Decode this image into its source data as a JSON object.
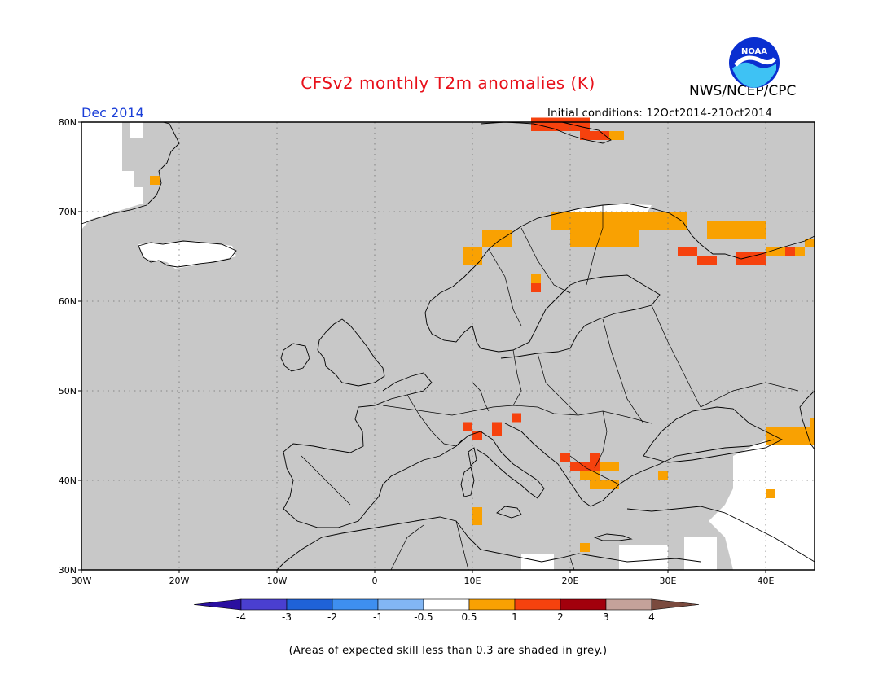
{
  "header": {
    "title": "CFSv2 monthly T2m anomalies (K)",
    "organization": "NWS/NCEP/CPC",
    "logo_text": "NOAA",
    "valid_month": "Dec 2014",
    "initial_conditions": "Initial conditions: 12Oct2014-21Oct2014"
  },
  "map": {
    "region": "Europe",
    "lon_range": [
      -30,
      45
    ],
    "lat_range": [
      30,
      80
    ],
    "lat_labels": [
      "80N",
      "70N",
      "60N",
      "50N",
      "40N",
      "30N"
    ],
    "lon_labels": [
      "30W",
      "20W",
      "10W",
      "0",
      "10E",
      "20E",
      "30E",
      "40E"
    ],
    "colors": {
      "low_skill_grey": "#c8c8c8",
      "ocean_background": "#ffffff",
      "coast": "#000000"
    },
    "anomaly_cells": [
      {
        "lon": 16,
        "lat": 79,
        "w": 6,
        "h": 1.5,
        "class": "1-2"
      },
      {
        "lon": 21,
        "lat": 78,
        "w": 4,
        "h": 1,
        "class": "1-2"
      },
      {
        "lon": 24,
        "lat": 78,
        "w": 1.5,
        "h": 1,
        "class": "0.5-1"
      },
      {
        "lon": -23,
        "lat": 73,
        "w": 1,
        "h": 1,
        "class": "0.5-1"
      },
      {
        "lon": 18,
        "lat": 68,
        "w": 14,
        "h": 2,
        "class": "0.5-1"
      },
      {
        "lon": 20,
        "lat": 66,
        "w": 7,
        "h": 2,
        "class": "0.5-1"
      },
      {
        "lon": 27,
        "lat": 69,
        "w": 4,
        "h": 1,
        "class": "0.5-1"
      },
      {
        "lon": 11,
        "lat": 66,
        "w": 3,
        "h": 2,
        "class": "0.5-1"
      },
      {
        "lon": 9,
        "lat": 64,
        "w": 2,
        "h": 2,
        "class": "0.5-1"
      },
      {
        "lon": 16,
        "lat": 62,
        "w": 1,
        "h": 1,
        "class": "0.5-1"
      },
      {
        "lon": 16,
        "lat": 61,
        "w": 1,
        "h": 1,
        "class": "1-2"
      },
      {
        "lon": 34,
        "lat": 67,
        "w": 6,
        "h": 2,
        "class": "0.5-1"
      },
      {
        "lon": 31,
        "lat": 65,
        "w": 2,
        "h": 1,
        "class": "1-2"
      },
      {
        "lon": 33,
        "lat": 64,
        "w": 2,
        "h": 1,
        "class": "1-2"
      },
      {
        "lon": 37,
        "lat": 64,
        "w": 3,
        "h": 1.5,
        "class": "1-2"
      },
      {
        "lon": 40,
        "lat": 65,
        "w": 4,
        "h": 1,
        "class": "0.5-1"
      },
      {
        "lon": 42,
        "lat": 65,
        "w": 1,
        "h": 1,
        "class": "1-2"
      },
      {
        "lon": 44,
        "lat": 66,
        "w": 1,
        "h": 1,
        "class": "0.5-1"
      },
      {
        "lon": 40,
        "lat": 44,
        "w": 5,
        "h": 2,
        "class": "0.5-1"
      },
      {
        "lon": 44.5,
        "lat": 46,
        "w": 0.5,
        "h": 1,
        "class": "0.5-1"
      },
      {
        "lon": 9,
        "lat": 45.5,
        "w": 1,
        "h": 1,
        "class": "1-2"
      },
      {
        "lon": 10,
        "lat": 44.5,
        "w": 1,
        "h": 1,
        "class": "1-2"
      },
      {
        "lon": 12,
        "lat": 45,
        "w": 1,
        "h": 1.5,
        "class": "1-2"
      },
      {
        "lon": 14,
        "lat": 46.5,
        "w": 1,
        "h": 1,
        "class": "1-2"
      },
      {
        "lon": 19,
        "lat": 42,
        "w": 1,
        "h": 1,
        "class": "1-2"
      },
      {
        "lon": 20,
        "lat": 41,
        "w": 3,
        "h": 1,
        "class": "1-2"
      },
      {
        "lon": 22,
        "lat": 42,
        "w": 1,
        "h": 1,
        "class": "1-2"
      },
      {
        "lon": 21,
        "lat": 40,
        "w": 2,
        "h": 1,
        "class": "0.5-1"
      },
      {
        "lon": 23,
        "lat": 41,
        "w": 2,
        "h": 1,
        "class": "0.5-1"
      },
      {
        "lon": 22,
        "lat": 39,
        "w": 3,
        "h": 1,
        "class": "0.5-1"
      },
      {
        "lon": 29,
        "lat": 40,
        "w": 1,
        "h": 1,
        "class": "0.5-1"
      },
      {
        "lon": 40,
        "lat": 38,
        "w": 1,
        "h": 1,
        "class": "0.5-1"
      },
      {
        "lon": 10,
        "lat": 35,
        "w": 1,
        "h": 2,
        "class": "0.5-1"
      },
      {
        "lon": 21,
        "lat": 32,
        "w": 1,
        "h": 1,
        "class": "0.5-1"
      }
    ]
  },
  "colorbar": {
    "colors": [
      "#2a0fa0",
      "#4a3fd0",
      "#1f62d8",
      "#3e8ff0",
      "#82b6f4",
      "#ffffff",
      "#f9a102",
      "#f6420e",
      "#a2000c",
      "#c4a29a",
      "#7a4a3e"
    ],
    "class_colors": {
      "0.5-1": "#f9a102",
      "1-2": "#f6420e",
      "2-3": "#a2000c",
      "3-4": "#c4a29a"
    },
    "labels": [
      "-4",
      "-3",
      "-2",
      "-1",
      "-0.5",
      "0.5",
      "1",
      "2",
      "3",
      "4"
    ]
  },
  "footnote": "(Areas of expected skill less than 0.3 are shaded in grey.)"
}
